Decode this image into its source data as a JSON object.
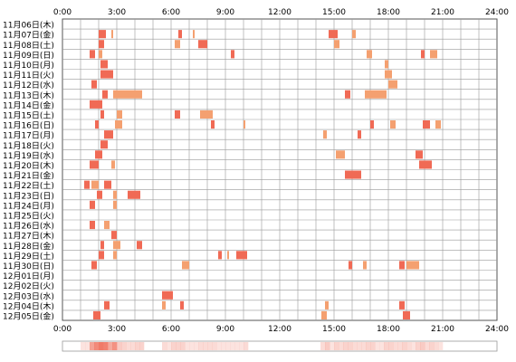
{
  "colors": {
    "bar_red": "#f06a55",
    "bar_orange": "#f4a070",
    "grid": "#999999",
    "border": "#555555",
    "background": "#ffffff",
    "heat_high": "#f07a68",
    "heat_low": "#fde4dc"
  },
  "chart_data": {
    "type": "heatmap",
    "title": "",
    "xlabel": "",
    "ylabel": "",
    "x_range_hours": [
      0,
      24
    ],
    "x_ticks": [
      "0:00",
      "3:00",
      "6:00",
      "9:00",
      "12:00",
      "15:00",
      "18:00",
      "21:00",
      "24:00"
    ],
    "grid": true,
    "dates": [
      "11月06日(木)",
      "11月07日(金)",
      "11月08日(土)",
      "11月09日(日)",
      "11月10日(月)",
      "11月11日(火)",
      "11月12日(水)",
      "11月13日(木)",
      "11月14日(金)",
      "11月15日(土)",
      "11月16日(日)",
      "11月17日(月)",
      "11月18日(火)",
      "11月19日(水)",
      "11月20日(木)",
      "11月21日(金)",
      "11月22日(土)",
      "11月23日(日)",
      "11月24日(月)",
      "11月25日(火)",
      "11月26日(水)",
      "11月27日(木)",
      "11月28日(金)",
      "11月29日(土)",
      "11月30日(日)",
      "12月01日(月)",
      "12月02日(火)",
      "12月03日(水)",
      "12月04日(木)",
      "12月05日(金)"
    ],
    "series": [
      {
        "date": "11月06日(木)",
        "intervals": []
      },
      {
        "date": "11月07日(金)",
        "intervals": [
          [
            2.0,
            2.4
          ],
          [
            2.7,
            2.8
          ],
          [
            6.4,
            6.6
          ],
          [
            7.2,
            7.3
          ],
          [
            14.7,
            15.2
          ],
          [
            16.0,
            16.2
          ]
        ]
      },
      {
        "date": "11月08日(土)",
        "intervals": [
          [
            2.0,
            2.3
          ],
          [
            6.2,
            6.5
          ],
          [
            7.5,
            8.0
          ],
          [
            15.0,
            15.3
          ]
        ]
      },
      {
        "date": "11月09日(日)",
        "intervals": [
          [
            1.5,
            1.8
          ],
          [
            2.0,
            2.2
          ],
          [
            9.3,
            9.5
          ],
          [
            16.8,
            17.1
          ],
          [
            19.8,
            20.0
          ],
          [
            20.3,
            20.7
          ]
        ]
      },
      {
        "date": "11月10日(月)",
        "intervals": [
          [
            2.1,
            2.5
          ],
          [
            17.8,
            18.0
          ]
        ]
      },
      {
        "date": "11月11日(火)",
        "intervals": [
          [
            2.1,
            2.8
          ],
          [
            17.8,
            18.2
          ]
        ]
      },
      {
        "date": "11月12日(水)",
        "intervals": [
          [
            1.6,
            1.9
          ],
          [
            18.0,
            18.5
          ]
        ]
      },
      {
        "date": "11月13日(木)",
        "intervals": [
          [
            2.2,
            2.5
          ],
          [
            2.8,
            4.4
          ],
          [
            15.6,
            15.9
          ],
          [
            16.7,
            17.9
          ]
        ]
      },
      {
        "date": "11月14日(金)",
        "intervals": [
          [
            1.5,
            2.2
          ]
        ]
      },
      {
        "date": "11月15日(土)",
        "intervals": [
          [
            2.1,
            2.3
          ],
          [
            3.0,
            3.3
          ],
          [
            6.2,
            6.5
          ],
          [
            7.6,
            8.3
          ]
        ]
      },
      {
        "date": "11月16日(日)",
        "intervals": [
          [
            1.8,
            2.0
          ],
          [
            2.9,
            3.3
          ],
          [
            8.2,
            8.4
          ],
          [
            10.0,
            10.1
          ],
          [
            17.0,
            17.2
          ],
          [
            18.1,
            18.4
          ],
          [
            19.9,
            20.3
          ],
          [
            20.6,
            20.9
          ]
        ]
      },
      {
        "date": "11月17日(月)",
        "intervals": [
          [
            2.3,
            2.8
          ],
          [
            14.4,
            14.6
          ],
          [
            16.3,
            16.5
          ]
        ]
      },
      {
        "date": "11月18日(火)",
        "intervals": [
          [
            2.1,
            2.5
          ]
        ]
      },
      {
        "date": "11月19日(水)",
        "intervals": [
          [
            1.8,
            2.2
          ],
          [
            15.1,
            15.6
          ],
          [
            19.5,
            19.9
          ]
        ]
      },
      {
        "date": "11月20日(木)",
        "intervals": [
          [
            1.5,
            2.0
          ],
          [
            2.7,
            2.9
          ],
          [
            19.7,
            20.4
          ]
        ]
      },
      {
        "date": "11月21日(金)",
        "intervals": [
          [
            15.6,
            16.5
          ]
        ]
      },
      {
        "date": "11月22日(土)",
        "intervals": [
          [
            1.2,
            1.5
          ],
          [
            1.6,
            2.0
          ],
          [
            2.3,
            2.7
          ]
        ]
      },
      {
        "date": "11月23日(日)",
        "intervals": [
          [
            1.9,
            2.2
          ],
          [
            2.8,
            3.0
          ],
          [
            3.6,
            4.3
          ]
        ]
      },
      {
        "date": "11月24日(月)",
        "intervals": [
          [
            1.5,
            1.8
          ],
          [
            2.8,
            3.0
          ]
        ]
      },
      {
        "date": "11月25日(火)",
        "intervals": []
      },
      {
        "date": "11月26日(水)",
        "intervals": [
          [
            1.5,
            1.8
          ],
          [
            2.3,
            2.6
          ]
        ]
      },
      {
        "date": "11月27日(木)",
        "intervals": [
          [
            2.7,
            3.0
          ]
        ]
      },
      {
        "date": "11月28日(金)",
        "intervals": [
          [
            2.1,
            2.3
          ],
          [
            2.8,
            3.2
          ],
          [
            4.1,
            4.4
          ]
        ]
      },
      {
        "date": "11月29日(土)",
        "intervals": [
          [
            2.0,
            2.3
          ],
          [
            2.8,
            3.0
          ],
          [
            8.6,
            8.8
          ],
          [
            9.1,
            9.2
          ],
          [
            9.6,
            10.2
          ]
        ]
      },
      {
        "date": "11月30日(日)",
        "intervals": [
          [
            1.6,
            1.9
          ],
          [
            6.6,
            7.0
          ],
          [
            15.8,
            16.0
          ],
          [
            16.6,
            16.8
          ],
          [
            18.6,
            18.9
          ],
          [
            19.0,
            19.7
          ]
        ]
      },
      {
        "date": "12月01日(月)",
        "intervals": []
      },
      {
        "date": "12月02日(火)",
        "intervals": []
      },
      {
        "date": "12月03日(水)",
        "intervals": [
          [
            5.5,
            6.1
          ]
        ]
      },
      {
        "date": "12月04日(木)",
        "intervals": [
          [
            2.3,
            2.6
          ],
          [
            5.5,
            5.7
          ],
          [
            6.5,
            6.7
          ],
          [
            14.5,
            14.7
          ],
          [
            18.6,
            18.9
          ]
        ]
      },
      {
        "date": "12月05日(金)",
        "intervals": [
          [
            1.7,
            2.1
          ],
          [
            14.3,
            14.6
          ],
          [
            18.8,
            19.2
          ]
        ]
      }
    ],
    "density_strip": {
      "bins_per_hour": 4,
      "note_source": "aggregate activity per time slot across all days (shown as shaded strip below chart)"
    }
  }
}
